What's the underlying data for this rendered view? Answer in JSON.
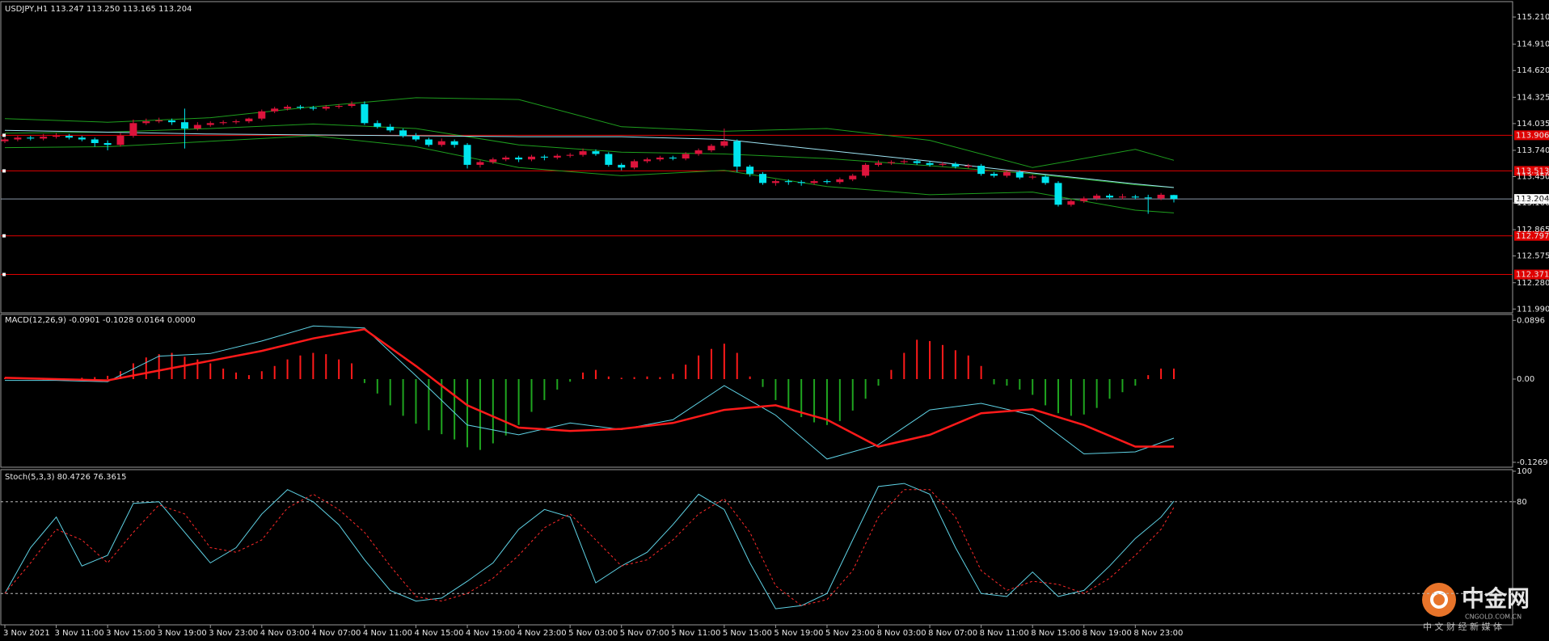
{
  "chart_data": [
    {
      "type": "candlestick",
      "legend": "USDJPY,H1  113.247 113.250 113.165 113.204",
      "up_color": "#dc143c",
      "down_color": "#00e5ee",
      "candles": [
        [
          113.84,
          113.88,
          113.82,
          113.86
        ],
        [
          113.86,
          113.9,
          113.84,
          113.88
        ],
        [
          113.88,
          113.9,
          113.85,
          113.87
        ],
        [
          113.87,
          113.92,
          113.85,
          113.89
        ],
        [
          113.89,
          113.93,
          113.87,
          113.9
        ],
        [
          113.9,
          113.92,
          113.86,
          113.88
        ],
        [
          113.88,
          113.9,
          113.84,
          113.86
        ],
        [
          113.86,
          113.88,
          113.78,
          113.82
        ],
        [
          113.82,
          113.85,
          113.74,
          113.8
        ],
        [
          113.8,
          113.93,
          113.78,
          113.9
        ],
        [
          113.9,
          114.08,
          113.88,
          114.04
        ],
        [
          114.04,
          114.09,
          114.02,
          114.06
        ],
        [
          114.06,
          114.1,
          114.04,
          114.07
        ],
        [
          114.07,
          114.09,
          114.02,
          114.05
        ],
        [
          114.05,
          114.2,
          113.76,
          113.98
        ],
        [
          113.98,
          114.05,
          113.96,
          114.02
        ],
        [
          114.02,
          114.06,
          114.0,
          114.04
        ],
        [
          114.04,
          114.07,
          114.02,
          114.05
        ],
        [
          114.05,
          114.08,
          114.03,
          114.06
        ],
        [
          114.06,
          114.1,
          114.04,
          114.09
        ],
        [
          114.09,
          114.19,
          114.07,
          114.17
        ],
        [
          114.17,
          114.22,
          114.15,
          114.2
        ],
        [
          114.2,
          114.24,
          114.18,
          114.22
        ],
        [
          114.22,
          114.24,
          114.19,
          114.21
        ],
        [
          114.21,
          114.23,
          114.18,
          114.2
        ],
        [
          114.2,
          114.24,
          114.18,
          114.22
        ],
        [
          114.22,
          114.25,
          114.2,
          114.23
        ],
        [
          114.23,
          114.28,
          114.21,
          114.25
        ],
        [
          114.25,
          114.28,
          114.02,
          114.04
        ],
        [
          114.04,
          114.07,
          113.98,
          114.0
        ],
        [
          114.0,
          114.03,
          113.94,
          113.96
        ],
        [
          113.96,
          113.98,
          113.88,
          113.9
        ],
        [
          113.9,
          113.93,
          113.84,
          113.86
        ],
        [
          113.86,
          113.88,
          113.78,
          113.8
        ],
        [
          113.8,
          113.87,
          113.78,
          113.84
        ],
        [
          113.84,
          113.86,
          113.77,
          113.8
        ],
        [
          113.8,
          113.82,
          113.54,
          113.58
        ],
        [
          113.58,
          113.63,
          113.55,
          113.61
        ],
        [
          113.61,
          113.66,
          113.59,
          113.64
        ],
        [
          113.64,
          113.68,
          113.62,
          113.66
        ],
        [
          113.66,
          113.68,
          113.61,
          113.64
        ],
        [
          113.64,
          113.69,
          113.62,
          113.67
        ],
        [
          113.67,
          113.69,
          113.63,
          113.66
        ],
        [
          113.66,
          113.7,
          113.64,
          113.68
        ],
        [
          113.68,
          113.71,
          113.66,
          113.69
        ],
        [
          113.69,
          113.76,
          113.67,
          113.73
        ],
        [
          113.73,
          113.75,
          113.68,
          113.7
        ],
        [
          113.7,
          113.72,
          113.56,
          113.58
        ],
        [
          113.58,
          113.6,
          113.52,
          113.55
        ],
        [
          113.55,
          113.64,
          113.53,
          113.62
        ],
        [
          113.62,
          113.66,
          113.6,
          113.64
        ],
        [
          113.64,
          113.68,
          113.62,
          113.66
        ],
        [
          113.66,
          113.68,
          113.63,
          113.65
        ],
        [
          113.65,
          113.72,
          113.63,
          113.7
        ],
        [
          113.7,
          113.76,
          113.68,
          113.74
        ],
        [
          113.74,
          113.81,
          113.72,
          113.79
        ],
        [
          113.79,
          113.98,
          113.77,
          113.84
        ],
        [
          113.84,
          113.86,
          113.5,
          113.56
        ],
        [
          113.56,
          113.58,
          113.45,
          113.48
        ],
        [
          113.48,
          113.5,
          113.36,
          113.38
        ],
        [
          113.38,
          113.42,
          113.35,
          113.4
        ],
        [
          113.4,
          113.42,
          113.36,
          113.39
        ],
        [
          113.39,
          113.41,
          113.35,
          113.38
        ],
        [
          113.38,
          113.42,
          113.36,
          113.4
        ],
        [
          113.4,
          113.42,
          113.37,
          113.39
        ],
        [
          113.39,
          113.44,
          113.37,
          113.42
        ],
        [
          113.42,
          113.48,
          113.4,
          113.46
        ],
        [
          113.46,
          113.6,
          113.44,
          113.58
        ],
        [
          113.58,
          113.63,
          113.56,
          113.6
        ],
        [
          113.6,
          113.63,
          113.58,
          113.61
        ],
        [
          113.61,
          113.64,
          113.59,
          113.62
        ],
        [
          113.62,
          113.64,
          113.58,
          113.6
        ],
        [
          113.6,
          113.62,
          113.56,
          113.58
        ],
        [
          113.58,
          113.61,
          113.56,
          113.59
        ],
        [
          113.59,
          113.61,
          113.54,
          113.56
        ],
        [
          113.56,
          113.59,
          113.54,
          113.57
        ],
        [
          113.57,
          113.59,
          113.46,
          113.48
        ],
        [
          113.48,
          113.5,
          113.44,
          113.46
        ],
        [
          113.46,
          113.52,
          113.44,
          113.5
        ],
        [
          113.5,
          113.52,
          113.42,
          113.44
        ],
        [
          113.44,
          113.47,
          113.42,
          113.45
        ],
        [
          113.45,
          113.47,
          113.36,
          113.38
        ],
        [
          113.38,
          113.4,
          113.12,
          113.14
        ],
        [
          113.14,
          113.2,
          113.12,
          113.18
        ],
        [
          113.18,
          113.23,
          113.16,
          113.21
        ],
        [
          113.21,
          113.26,
          113.19,
          113.24
        ],
        [
          113.24,
          113.26,
          113.2,
          113.22
        ],
        [
          113.22,
          113.26,
          113.2,
          113.23
        ],
        [
          113.23,
          113.25,
          113.2,
          113.22
        ],
        [
          113.22,
          113.25,
          113.04,
          113.21
        ],
        [
          113.21,
          113.27,
          113.19,
          113.25
        ],
        [
          113.247,
          113.25,
          113.165,
          113.204
        ]
      ],
      "line_x": [
        0,
        8,
        16,
        24,
        32,
        40,
        48,
        56,
        64,
        72,
        80,
        88,
        91
      ],
      "lines": [
        {
          "color": "#1e9e1e",
          "values": [
            114.09,
            114.05,
            114.1,
            114.22,
            114.32,
            114.3,
            114.0,
            113.95,
            113.98,
            113.85,
            113.55,
            113.75,
            113.63
          ]
        },
        {
          "color": "#1e9e1e",
          "values": [
            113.93,
            113.94,
            113.98,
            114.03,
            113.98,
            113.8,
            113.72,
            113.7,
            113.65,
            113.57,
            113.48,
            113.36,
            113.33
          ]
        },
        {
          "color": "#1e9e1e",
          "values": [
            113.77,
            113.78,
            113.84,
            113.9,
            113.78,
            113.55,
            113.46,
            113.52,
            113.34,
            113.25,
            113.28,
            113.08,
            113.05
          ]
        },
        {
          "color": "#9fe6f5",
          "values": [
            113.96,
            113.94,
            113.92,
            113.91,
            113.9,
            113.89,
            113.89,
            113.86,
            113.74,
            113.62,
            113.49,
            113.37,
            113.33
          ]
        }
      ],
      "ylim": [
        111.957,
        115.362
      ],
      "yticks": [
        {
          "value": 115.21,
          "label": "115.210"
        },
        {
          "value": 114.91,
          "label": "114.910"
        },
        {
          "value": 114.62,
          "label": "114.620"
        },
        114.325,
        114.035,
        {
          "value": 113.74,
          "label": "113.740"
        },
        {
          "value": 113.45,
          "label": "113.450"
        },
        {
          "value": 113.16,
          "label": "113.160"
        },
        112.865,
        112.575,
        {
          "value": 112.28,
          "label": "112.280"
        },
        {
          "value": 111.99,
          "label": "111.990"
        }
      ],
      "levels": [
        113.906,
        113.513,
        112.797,
        112.371
      ],
      "level_color": "#e00000",
      "last_price": 113.204,
      "xticks": [
        {
          "value": 0,
          "label": "3 Nov 2021"
        },
        {
          "value": 4,
          "label": "3 Nov 11:00"
        },
        {
          "value": 8,
          "label": "3 Nov 15:00"
        },
        {
          "value": 12,
          "label": "3 Nov 19:00"
        },
        {
          "value": 16,
          "label": "3 Nov 23:00"
        },
        {
          "value": 20,
          "label": "4 Nov 03:00"
        },
        {
          "value": 24,
          "label": "4 Nov 07:00"
        },
        {
          "value": 28,
          "label": "4 Nov 11:00"
        },
        {
          "value": 32,
          "label": "4 Nov 15:00"
        },
        {
          "value": 36,
          "label": "4 Nov 19:00"
        },
        {
          "value": 40,
          "label": "4 Nov 23:00"
        },
        {
          "value": 44,
          "label": "5 Nov 03:00"
        },
        {
          "value": 48,
          "label": "5 Nov 07:00"
        },
        {
          "value": 52,
          "label": "5 Nov 11:00"
        },
        {
          "value": 56,
          "label": "5 Nov 15:00"
        },
        {
          "value": 60,
          "label": "5 Nov 19:00"
        },
        {
          "value": 64,
          "label": "5 Nov 23:00"
        },
        {
          "value": 68,
          "label": "8 Nov 03:00"
        },
        {
          "value": 72,
          "label": "8 Nov 07:00"
        },
        {
          "value": 76,
          "label": "8 Nov 11:00"
        },
        {
          "value": 80,
          "label": "8 Nov 15:00"
        },
        {
          "value": 84,
          "label": "8 Nov 19:00"
        },
        {
          "value": 88,
          "label": "8 Nov 23:00"
        }
      ]
    },
    {
      "type": "macd",
      "legend": "MACD(12,26,9) -0.0901 -0.1028 0.0164 0.0000",
      "up_color": "#ff1a1a",
      "down_color": "#1fa51f",
      "histogram": [
        0.002,
        0.001,
        0.0,
        -0.001,
        0.001,
        0.0,
        0.002,
        0.003,
        0.005,
        0.012,
        0.024,
        0.033,
        0.038,
        0.04,
        0.034,
        0.03,
        0.024,
        0.016,
        0.01,
        0.006,
        0.012,
        0.02,
        0.03,
        0.036,
        0.04,
        0.038,
        0.03,
        0.024,
        -0.006,
        -0.022,
        -0.04,
        -0.056,
        -0.068,
        -0.078,
        -0.084,
        -0.092,
        -0.104,
        -0.108,
        -0.098,
        -0.086,
        -0.07,
        -0.05,
        -0.032,
        -0.016,
        -0.004,
        0.01,
        0.014,
        0.004,
        0.002,
        0.003,
        0.004,
        0.003,
        0.008,
        0.022,
        0.036,
        0.046,
        0.054,
        0.04,
        0.004,
        -0.012,
        -0.032,
        -0.046,
        -0.058,
        -0.066,
        -0.07,
        -0.064,
        -0.048,
        -0.03,
        -0.01,
        0.014,
        0.04,
        0.06,
        0.058,
        0.052,
        0.044,
        0.036,
        0.02,
        -0.008,
        -0.01,
        -0.016,
        -0.024,
        -0.04,
        -0.052,
        -0.056,
        -0.054,
        -0.044,
        -0.03,
        -0.02,
        -0.01,
        0.006,
        0.016,
        0.016
      ],
      "line_x": [
        0,
        4,
        8,
        12,
        16,
        20,
        24,
        28,
        32,
        36,
        40,
        44,
        48,
        52,
        56,
        60,
        64,
        68,
        72,
        76,
        80,
        84,
        88,
        91
      ],
      "lines": [
        {
          "color": "#5fd3e6",
          "width": 1,
          "values": [
            -0.002,
            -0.002,
            -0.004,
            0.035,
            0.039,
            0.058,
            0.081,
            0.078,
            0.005,
            -0.07,
            -0.085,
            -0.067,
            -0.077,
            -0.062,
            -0.01,
            -0.055,
            -0.122,
            -0.1,
            -0.047,
            -0.037,
            -0.055,
            -0.114,
            -0.111,
            -0.09
          ]
        },
        {
          "color": "#ff1a1a",
          "width": 2.5,
          "values": [
            0.002,
            0.0,
            -0.002,
            0.013,
            0.028,
            0.043,
            0.062,
            0.076,
            0.02,
            -0.04,
            -0.074,
            -0.079,
            -0.076,
            -0.067,
            -0.047,
            -0.04,
            -0.062,
            -0.103,
            -0.085,
            -0.052,
            -0.046,
            -0.07,
            -0.103,
            -0.103
          ]
        }
      ],
      "ylim": [
        -0.1344,
        0.0986
      ],
      "yticks": [
        0.0896,
        {
          "value": 0,
          "label": "0.00"
        },
        -0.1269
      ]
    },
    {
      "type": "stochastic",
      "legend": "Stoch(5,3,3) 80.4726 76.3615",
      "line_x": [
        0,
        2,
        4,
        6,
        8,
        10,
        12,
        14,
        16,
        18,
        20,
        22,
        24,
        26,
        28,
        30,
        32,
        34,
        36,
        38,
        40,
        42,
        44,
        46,
        48,
        50,
        52,
        54,
        56,
        58,
        60,
        62,
        64,
        66,
        68,
        70,
        72,
        74,
        76,
        78,
        80,
        82,
        84,
        86,
        88,
        90,
        91
      ],
      "lines": [
        {
          "color": "#5fd3e6",
          "dashed": false,
          "values": [
            20,
            50,
            70,
            38,
            45,
            79,
            80,
            60,
            40,
            50,
            72,
            88,
            80,
            65,
            42,
            22,
            15,
            17,
            28,
            40,
            62,
            75,
            70,
            27,
            38,
            47,
            65,
            85,
            75,
            40,
            10,
            12,
            20,
            55,
            90,
            92,
            85,
            50,
            20,
            18,
            34,
            18,
            22,
            38,
            56,
            70,
            80.47
          ]
        },
        {
          "color": "#ff2a2a",
          "dashed": true,
          "values": [
            20,
            40,
            62,
            55,
            40,
            60,
            78,
            72,
            50,
            47,
            55,
            76,
            85,
            75,
            60,
            38,
            18,
            15,
            20,
            30,
            45,
            63,
            72,
            55,
            38,
            42,
            55,
            72,
            82,
            60,
            25,
            12,
            16,
            35,
            70,
            88,
            88,
            70,
            35,
            22,
            28,
            26,
            20,
            30,
            45,
            62,
            76.36
          ]
        }
      ],
      "ylim": [
        0,
        100
      ],
      "yticks": [
        100,
        80
      ],
      "levels": [
        20,
        80
      ]
    }
  ],
  "watermark": {
    "brand": "中金网",
    "site": "CNGOLD.COM.CN",
    "slogan": "中 文 财 经 新 媒 体"
  }
}
